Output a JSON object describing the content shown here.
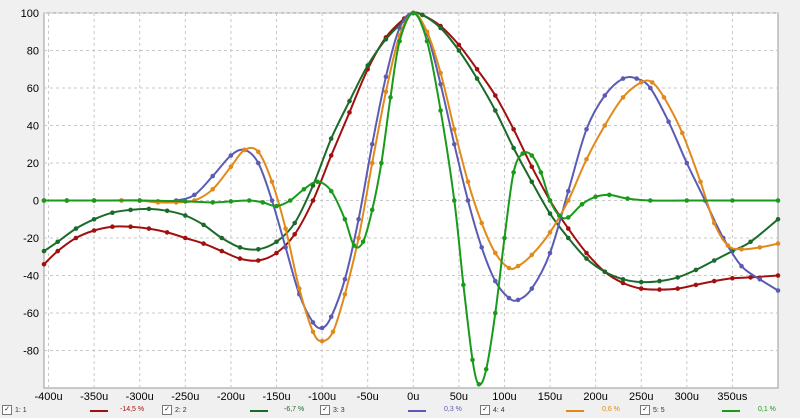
{
  "chart_data": {
    "type": "line",
    "x_ticks": [
      "-400u",
      "-350u",
      "-300u",
      "-250u",
      "-200u",
      "-150u",
      "-100u",
      "-50u",
      "0u",
      "50u",
      "100u",
      "150u",
      "200u",
      "250u",
      "300u",
      "350us"
    ],
    "x_values": [
      -400,
      -350,
      -300,
      -250,
      -200,
      -150,
      -100,
      -50,
      0,
      50,
      100,
      150,
      200,
      250,
      300,
      350
    ],
    "y_ticks": [
      100,
      80,
      60,
      40,
      20,
      0,
      -20,
      -40,
      -60,
      -80
    ],
    "xlim": [
      -405,
      400
    ],
    "ylim": [
      -100,
      100
    ],
    "grid": true,
    "series": [
      {
        "name": "1: 1",
        "value": "-14,5 %",
        "color": "#a01010",
        "points": [
          [
            -405,
            -34
          ],
          [
            -390,
            -27
          ],
          [
            -370,
            -20
          ],
          [
            -350,
            -16
          ],
          [
            -330,
            -14
          ],
          [
            -310,
            -14
          ],
          [
            -290,
            -15
          ],
          [
            -270,
            -17
          ],
          [
            -250,
            -20
          ],
          [
            -230,
            -23
          ],
          [
            -210,
            -27
          ],
          [
            -190,
            -31
          ],
          [
            -170,
            -32
          ],
          [
            -150,
            -28
          ],
          [
            -130,
            -18
          ],
          [
            -110,
            0
          ],
          [
            -90,
            24
          ],
          [
            -70,
            47
          ],
          [
            -50,
            70
          ],
          [
            -30,
            87
          ],
          [
            -10,
            97
          ],
          [
            0,
            100
          ],
          [
            10,
            99
          ],
          [
            30,
            93
          ],
          [
            50,
            83
          ],
          [
            70,
            70
          ],
          [
            90,
            56
          ],
          [
            110,
            38
          ],
          [
            130,
            18
          ],
          [
            150,
            0
          ],
          [
            170,
            -15
          ],
          [
            190,
            -28
          ],
          [
            210,
            -38
          ],
          [
            230,
            -44
          ],
          [
            250,
            -47
          ],
          [
            270,
            -47.5
          ],
          [
            290,
            -47
          ],
          [
            310,
            -45
          ],
          [
            330,
            -43
          ],
          [
            350,
            -41.5
          ],
          [
            370,
            -41
          ],
          [
            400,
            -40
          ]
        ]
      },
      {
        "name": "2: 2",
        "value": "-6,7 %",
        "color": "#1a6b2a",
        "points": [
          [
            -405,
            -27
          ],
          [
            -390,
            -22
          ],
          [
            -370,
            -15
          ],
          [
            -350,
            -10
          ],
          [
            -330,
            -6.5
          ],
          [
            -310,
            -5
          ],
          [
            -290,
            -4.5
          ],
          [
            -270,
            -5.5
          ],
          [
            -250,
            -8
          ],
          [
            -230,
            -13
          ],
          [
            -210,
            -20
          ],
          [
            -190,
            -25
          ],
          [
            -170,
            -26
          ],
          [
            -150,
            -22
          ],
          [
            -130,
            -12
          ],
          [
            -110,
            8
          ],
          [
            -90,
            33
          ],
          [
            -70,
            53
          ],
          [
            -50,
            72
          ],
          [
            -30,
            86
          ],
          [
            -10,
            96
          ],
          [
            0,
            100
          ],
          [
            10,
            99
          ],
          [
            30,
            92
          ],
          [
            50,
            80
          ],
          [
            70,
            65
          ],
          [
            90,
            48
          ],
          [
            110,
            28
          ],
          [
            130,
            10
          ],
          [
            150,
            -7
          ],
          [
            170,
            -20
          ],
          [
            190,
            -31
          ],
          [
            210,
            -38
          ],
          [
            230,
            -42
          ],
          [
            250,
            -43.5
          ],
          [
            270,
            -43
          ],
          [
            290,
            -41
          ],
          [
            310,
            -37
          ],
          [
            330,
            -32
          ],
          [
            350,
            -27
          ],
          [
            370,
            -22
          ],
          [
            400,
            -10
          ]
        ]
      },
      {
        "name": "3: 3",
        "value": "0,3 %",
        "color": "#5b5bb5",
        "points": [
          [
            -405,
            0
          ],
          [
            -380,
            0
          ],
          [
            -350,
            0
          ],
          [
            -320,
            0
          ],
          [
            -300,
            0
          ],
          [
            -280,
            -0.5
          ],
          [
            -260,
            0
          ],
          [
            -240,
            3
          ],
          [
            -220,
            13
          ],
          [
            -200,
            24
          ],
          [
            -185,
            27
          ],
          [
            -170,
            20
          ],
          [
            -155,
            0
          ],
          [
            -140,
            -25
          ],
          [
            -125,
            -50
          ],
          [
            -110,
            -65
          ],
          [
            -100,
            -68
          ],
          [
            -90,
            -62
          ],
          [
            -75,
            -42
          ],
          [
            -60,
            -10
          ],
          [
            -45,
            30
          ],
          [
            -30,
            66
          ],
          [
            -15,
            92
          ],
          [
            0,
            100
          ],
          [
            15,
            89
          ],
          [
            30,
            62
          ],
          [
            45,
            30
          ],
          [
            60,
            0
          ],
          [
            75,
            -25
          ],
          [
            90,
            -43
          ],
          [
            105,
            -52
          ],
          [
            115,
            -53
          ],
          [
            130,
            -47
          ],
          [
            150,
            -28
          ],
          [
            170,
            5
          ],
          [
            190,
            38
          ],
          [
            210,
            56
          ],
          [
            230,
            65
          ],
          [
            245,
            65
          ],
          [
            260,
            60
          ],
          [
            280,
            42
          ],
          [
            300,
            20
          ],
          [
            320,
            0
          ],
          [
            340,
            -20
          ],
          [
            360,
            -35
          ],
          [
            380,
            -42
          ],
          [
            400,
            -48
          ]
        ]
      },
      {
        "name": "4: 4",
        "value": "0,6 %",
        "color": "#e08a1a",
        "points": [
          [
            -405,
            0
          ],
          [
            -380,
            0
          ],
          [
            -350,
            0
          ],
          [
            -320,
            0
          ],
          [
            -300,
            0
          ],
          [
            -280,
            -1
          ],
          [
            -260,
            -1
          ],
          [
            -240,
            0
          ],
          [
            -220,
            6
          ],
          [
            -200,
            18
          ],
          [
            -185,
            27
          ],
          [
            -170,
            26
          ],
          [
            -155,
            10
          ],
          [
            -140,
            -15
          ],
          [
            -125,
            -47
          ],
          [
            -110,
            -70
          ],
          [
            -100,
            -75
          ],
          [
            -88,
            -70
          ],
          [
            -75,
            -50
          ],
          [
            -60,
            -20
          ],
          [
            -45,
            20
          ],
          [
            -30,
            58
          ],
          [
            -15,
            88
          ],
          [
            0,
            100
          ],
          [
            15,
            90
          ],
          [
            30,
            68
          ],
          [
            45,
            38
          ],
          [
            60,
            10
          ],
          [
            75,
            -12
          ],
          [
            90,
            -28
          ],
          [
            105,
            -36
          ],
          [
            115,
            -35
          ],
          [
            130,
            -29
          ],
          [
            150,
            -17
          ],
          [
            170,
            0
          ],
          [
            190,
            22
          ],
          [
            210,
            40
          ],
          [
            230,
            55
          ],
          [
            250,
            63
          ],
          [
            262,
            63
          ],
          [
            275,
            55
          ],
          [
            295,
            36
          ],
          [
            315,
            10
          ],
          [
            330,
            -12
          ],
          [
            345,
            -24
          ],
          [
            360,
            -26
          ],
          [
            380,
            -25
          ],
          [
            400,
            -23
          ]
        ]
      },
      {
        "name": "5: 5",
        "value": "0,1 %",
        "color": "#1a9a1a",
        "points": [
          [
            -405,
            0
          ],
          [
            -380,
            0
          ],
          [
            -350,
            0
          ],
          [
            -300,
            0
          ],
          [
            -250,
            -0.5
          ],
          [
            -220,
            -1
          ],
          [
            -200,
            -0.5
          ],
          [
            -180,
            0
          ],
          [
            -165,
            -1
          ],
          [
            -150,
            -3
          ],
          [
            -135,
            0
          ],
          [
            -120,
            6
          ],
          [
            -105,
            10
          ],
          [
            -90,
            5
          ],
          [
            -75,
            -10
          ],
          [
            -65,
            -24
          ],
          [
            -55,
            -22
          ],
          [
            -45,
            -5
          ],
          [
            -35,
            20
          ],
          [
            -25,
            55
          ],
          [
            -15,
            85
          ],
          [
            0,
            100
          ],
          [
            15,
            85
          ],
          [
            30,
            48
          ],
          [
            45,
            0
          ],
          [
            55,
            -45
          ],
          [
            65,
            -85
          ],
          [
            72,
            -98
          ],
          [
            80,
            -90
          ],
          [
            90,
            -60
          ],
          [
            100,
            -20
          ],
          [
            110,
            15
          ],
          [
            120,
            25
          ],
          [
            130,
            24
          ],
          [
            140,
            15
          ],
          [
            150,
            0
          ],
          [
            160,
            -8
          ],
          [
            170,
            -9
          ],
          [
            185,
            -2
          ],
          [
            200,
            2
          ],
          [
            215,
            3
          ],
          [
            235,
            1
          ],
          [
            260,
            0
          ],
          [
            300,
            0
          ],
          [
            350,
            0
          ],
          [
            400,
            0
          ]
        ]
      }
    ]
  },
  "legend": {
    "items": [
      {
        "check": "✓",
        "label": "1: 1",
        "value": "-14,5 %"
      },
      {
        "check": "✓",
        "label": "2: 2",
        "value": "-6,7 %"
      },
      {
        "check": "✓",
        "label": "3: 3",
        "value": "0,3 %"
      },
      {
        "check": "✓",
        "label": "4: 4",
        "value": "0,6 %"
      },
      {
        "check": "✓",
        "label": "5: 5",
        "value": "0,1 %"
      }
    ]
  }
}
